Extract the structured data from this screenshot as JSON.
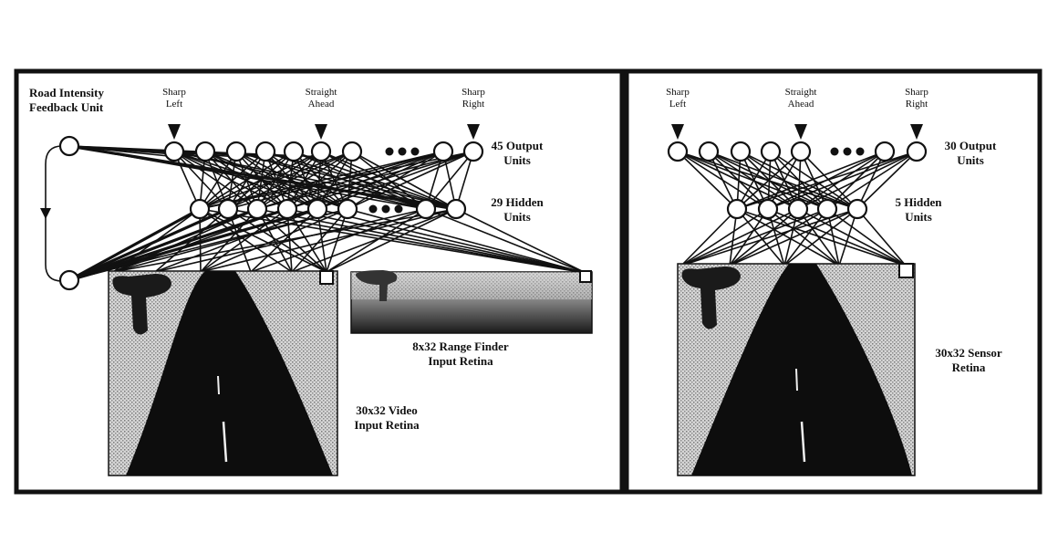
{
  "left_panel": {
    "feedback_label_line1": "Road Intensity",
    "feedback_label_line2": "Feedback Unit",
    "steer": [
      {
        "line1": "Sharp",
        "line2": "Left"
      },
      {
        "line1": "Straight",
        "line2": "Ahead"
      },
      {
        "line1": "Sharp",
        "line2": "Right"
      }
    ],
    "output_label_line1": "45 Output",
    "output_label_line2": "Units",
    "hidden_label_line1": "29 Hidden",
    "hidden_label_line2": "Units",
    "range_label_line1": "8x32 Range Finder",
    "range_label_line2": "Input Retina",
    "video_label_line1": "30x32 Video",
    "video_label_line2": "Input Retina"
  },
  "right_panel": {
    "steer": [
      {
        "line1": "Sharp",
        "line2": "Left"
      },
      {
        "line1": "Straight",
        "line2": "Ahead"
      },
      {
        "line1": "Sharp",
        "line2": "Right"
      }
    ],
    "output_label_line1": "30 Output",
    "output_label_line2": "Units",
    "hidden_label_line1": "5 Hidden",
    "hidden_label_line2": "Units",
    "sensor_label_line1": "30x32 Sensor",
    "sensor_label_line2": "Retina"
  },
  "colors": {
    "ink": "#111111",
    "background": "#ffffff",
    "stipple": "#b9b9b9"
  }
}
